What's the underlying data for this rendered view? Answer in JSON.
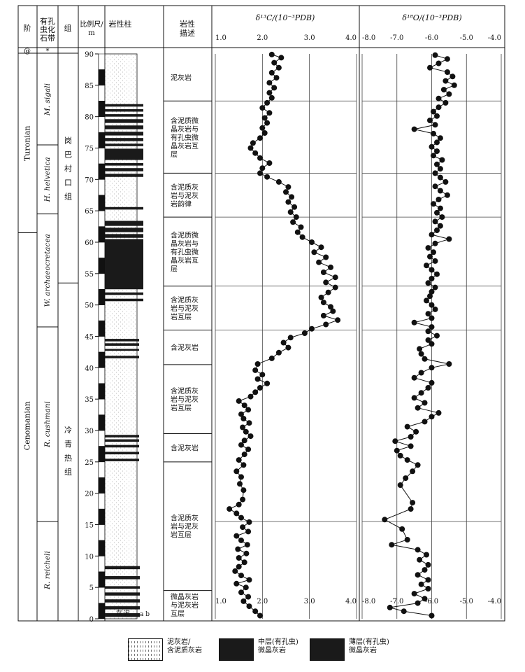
{
  "headers": {
    "stage": "阶",
    "biozone": [
      "有孔",
      "虫化",
      "石带"
    ],
    "group": "组",
    "scale": [
      "比例尺/",
      "m"
    ],
    "column": "岩性柱",
    "desc": [
      "岩性",
      "描述"
    ],
    "d13c": "δ¹³C/(10⁻³PDB)",
    "d18o": "δ¹⁸O/(10⁻³PDB)"
  },
  "top_row": {
    "stage": "@",
    "biozone": "*"
  },
  "stages": [
    {
      "name": "Turonian",
      "from_m": 61.5,
      "to_m": 90
    },
    {
      "name": "Cenomanian",
      "from_m": 0,
      "to_m": 61.5
    }
  ],
  "biozones": [
    {
      "name": "M. sigali",
      "from_m": 75.5,
      "to_m": 90
    },
    {
      "name": "H. helvetica",
      "from_m": 64.5,
      "to_m": 75.5
    },
    {
      "name": "W. archaeocretacea",
      "from_m": 46.5,
      "to_m": 64.5
    },
    {
      "name": "R. cushmani",
      "from_m": 15.5,
      "to_m": 46.5
    },
    {
      "name": "R. reicheli",
      "from_m": 0,
      "to_m": 15.5
    }
  ],
  "groups": [
    {
      "name": [
        "岗",
        "巴",
        "村",
        "口",
        "组"
      ],
      "from_m": 53.5,
      "to_m": 90
    },
    {
      "name": [
        "冷",
        "青",
        "热",
        "组"
      ],
      "from_m": 0,
      "to_m": 53.5
    }
  ],
  "scale_ticks": [
    "0",
    "5",
    "10",
    "15",
    "20",
    "25",
    "30",
    "35",
    "40",
    "45",
    "50",
    "55",
    "60",
    "65",
    "70",
    "75",
    "80",
    "85",
    "90"
  ],
  "column_footer": {
    "left": "灰泥",
    "right": "a b"
  },
  "lithology_desc": [
    {
      "lines": [
        "泥灰岩"
      ],
      "from_m": 82.5,
      "to_m": 90
    },
    {
      "lines": [
        "含泥质微",
        "晶灰岩与",
        "有孔虫微",
        "晶灰岩互",
        "层"
      ],
      "from_m": 71,
      "to_m": 82.5
    },
    {
      "lines": [
        "含泥质灰",
        "岩与泥灰",
        "岩韵律"
      ],
      "from_m": 64,
      "to_m": 71
    },
    {
      "lines": [
        "含泥质微",
        "晶灰岩与",
        "有孔虫微",
        "晶灰岩互",
        "层"
      ],
      "from_m": 53,
      "to_m": 64
    },
    {
      "lines": [
        "含泥质灰",
        "岩与泥灰",
        "岩互层"
      ],
      "from_m": 46,
      "to_m": 53
    },
    {
      "lines": [
        "含泥灰岩"
      ],
      "from_m": 40.5,
      "to_m": 46
    },
    {
      "lines": [
        "含泥质灰",
        "岩与泥灰",
        "岩互层"
      ],
      "from_m": 29.5,
      "to_m": 40.5
    },
    {
      "lines": [
        "含泥灰岩"
      ],
      "from_m": 25,
      "to_m": 29.5
    },
    {
      "lines": [
        "含泥质灰",
        "岩与泥灰",
        "岩互层"
      ],
      "from_m": 4.5,
      "to_m": 25
    },
    {
      "lines": [
        "微晶灰岩",
        "与泥灰岩",
        "互层"
      ],
      "from_m": 0,
      "to_m": 4.5
    }
  ],
  "legend": [
    {
      "kind": "pattern",
      "lines": [
        "泥灰岩/",
        "含泥质灰岩"
      ]
    },
    {
      "kind": "solid",
      "lines": [
        "中层(有孔虫)",
        "微晶灰岩"
      ]
    },
    {
      "kind": "solid",
      "lines": [
        "薄层(有孔虫)",
        "微晶灰岩"
      ]
    }
  ],
  "colors": {
    "ink": "#111111",
    "fill_dark": "#1a1a1a"
  },
  "chart_data": [
    {
      "type": "line",
      "title": "δ¹³C/(10⁻³PDB)",
      "xlabel": "δ¹³C/(10⁻³PDB)",
      "ylabel": "比例尺/m",
      "xlim": [
        1.0,
        4.0
      ],
      "xticks": [
        "1.0",
        "2.0",
        "3.0",
        "4.0"
      ],
      "ylim": [
        0,
        90
      ],
      "grid": true,
      "markers": "filled-circle",
      "series": [
        {
          "points": [
            [
              1.95,
              0.5
            ],
            [
              1.85,
              1.2
            ],
            [
              1.72,
              2.0
            ],
            [
              1.6,
              2.8
            ],
            [
              1.7,
              3.5
            ],
            [
              1.55,
              4.2
            ],
            [
              1.65,
              5.0
            ],
            [
              1.45,
              5.6
            ],
            [
              1.72,
              6.2
            ],
            [
              1.55,
              6.9
            ],
            [
              1.42,
              7.6
            ],
            [
              1.5,
              8.3
            ],
            [
              1.62,
              9.0
            ],
            [
              1.5,
              9.7
            ],
            [
              1.66,
              10.4
            ],
            [
              1.48,
              11.1
            ],
            [
              1.68,
              11.8
            ],
            [
              1.55,
              12.5
            ],
            [
              1.45,
              13.2
            ],
            [
              1.7,
              13.9
            ],
            [
              1.58,
              14.6
            ],
            [
              1.72,
              15.4
            ],
            [
              1.55,
              16.1
            ],
            [
              1.45,
              16.8
            ],
            [
              1.3,
              17.5
            ],
            [
              1.5,
              18.2
            ],
            [
              1.58,
              19.0
            ],
            [
              1.6,
              20.5
            ],
            [
              1.52,
              21.5
            ],
            [
              1.55,
              22.6
            ],
            [
              1.45,
              23.5
            ],
            [
              1.6,
              24.5
            ],
            [
              1.5,
              25.3
            ],
            [
              1.62,
              26.2
            ],
            [
              1.7,
              27.0
            ],
            [
              1.55,
              27.7
            ],
            [
              1.62,
              28.4
            ],
            [
              1.75,
              29.1
            ],
            [
              1.65,
              29.8
            ],
            [
              1.58,
              30.5
            ],
            [
              1.72,
              31.2
            ],
            [
              1.6,
              31.9
            ],
            [
              1.55,
              32.6
            ],
            [
              1.7,
              33.3
            ],
            [
              1.62,
              34.0
            ],
            [
              1.5,
              34.7
            ],
            [
              1.75,
              35.4
            ],
            [
              1.85,
              36.1
            ],
            [
              1.95,
              36.8
            ],
            [
              2.1,
              37.5
            ],
            [
              1.9,
              38.2
            ],
            [
              2.0,
              38.9
            ],
            [
              1.85,
              39.6
            ],
            [
              1.9,
              40.6
            ],
            [
              2.2,
              41.5
            ],
            [
              2.35,
              42.4
            ],
            [
              2.55,
              43.2
            ],
            [
              2.45,
              44.0
            ],
            [
              2.6,
              44.8
            ],
            [
              2.9,
              45.5
            ],
            [
              3.05,
              46.2
            ],
            [
              3.35,
              46.9
            ],
            [
              3.6,
              47.6
            ],
            [
              3.3,
              48.3
            ],
            [
              3.5,
              49.0
            ],
            [
              3.45,
              49.7
            ],
            [
              3.3,
              50.4
            ],
            [
              3.25,
              51.2
            ],
            [
              3.4,
              52.0
            ],
            [
              3.55,
              52.8
            ],
            [
              3.35,
              53.6
            ],
            [
              3.55,
              54.4
            ],
            [
              3.3,
              55.2
            ],
            [
              3.45,
              56.0
            ],
            [
              3.2,
              56.8
            ],
            [
              3.35,
              57.6
            ],
            [
              3.1,
              58.4
            ],
            [
              3.25,
              59.2
            ],
            [
              3.05,
              60.0
            ],
            [
              2.85,
              60.8
            ],
            [
              2.75,
              61.6
            ],
            [
              2.82,
              62.4
            ],
            [
              2.65,
              63.2
            ],
            [
              2.72,
              64.0
            ],
            [
              2.6,
              64.8
            ],
            [
              2.68,
              65.6
            ],
            [
              2.55,
              66.4
            ],
            [
              2.62,
              67.2
            ],
            [
              2.5,
              68.0
            ],
            [
              2.55,
              68.8
            ],
            [
              2.35,
              69.6
            ],
            [
              2.1,
              70.4
            ],
            [
              1.95,
              71.0
            ],
            [
              2.0,
              71.8
            ],
            [
              2.15,
              72.6
            ],
            [
              1.95,
              73.4
            ],
            [
              1.85,
              74.2
            ],
            [
              1.75,
              75.0
            ],
            [
              1.8,
              75.8
            ],
            [
              1.95,
              76.6
            ],
            [
              2.05,
              77.4
            ],
            [
              2.0,
              78.2
            ],
            [
              2.1,
              79.0
            ],
            [
              2.05,
              79.8
            ],
            [
              2.15,
              80.6
            ],
            [
              2.0,
              81.4
            ],
            [
              2.1,
              82.2
            ],
            [
              2.2,
              83.0
            ],
            [
              2.15,
              83.8
            ],
            [
              2.25,
              84.6
            ],
            [
              2.15,
              85.4
            ],
            [
              2.3,
              86.2
            ],
            [
              2.2,
              87.0
            ],
            [
              2.35,
              87.8
            ],
            [
              2.25,
              88.6
            ],
            [
              2.4,
              89.4
            ],
            [
              2.2,
              89.9
            ]
          ]
        }
      ]
    },
    {
      "type": "line",
      "title": "δ¹⁸O/(10⁻³PDB)",
      "xlabel": "δ¹⁸O/(10⁻³PDB)",
      "ylabel": "比例尺/m",
      "xlim": [
        -8.0,
        -4.0
      ],
      "xticks": [
        "-8.0",
        "-7.0",
        "-6.0",
        "-5.0",
        "-4.0"
      ],
      "ylim": [
        0,
        90
      ],
      "grid": true,
      "markers": "filled-circle",
      "series": [
        {
          "points": [
            [
              -6.0,
              0.5
            ],
            [
              -6.8,
              1.2
            ],
            [
              -7.2,
              1.8
            ],
            [
              -6.4,
              2.5
            ],
            [
              -6.2,
              3.2
            ],
            [
              -6.5,
              4.0
            ],
            [
              -6.1,
              4.8
            ],
            [
              -6.3,
              5.5
            ],
            [
              -6.1,
              6.2
            ],
            [
              -6.4,
              7.0
            ],
            [
              -6.2,
              7.8
            ],
            [
              -6.1,
              8.6
            ],
            [
              -6.35,
              9.4
            ],
            [
              -6.15,
              10.2
            ],
            [
              -6.4,
              11.0
            ],
            [
              -7.15,
              11.8
            ],
            [
              -6.7,
              12.6
            ],
            [
              -6.85,
              14.3
            ],
            [
              -7.35,
              15.8
            ],
            [
              -6.6,
              17.5
            ],
            [
              -6.55,
              18.5
            ],
            [
              -6.9,
              21.3
            ],
            [
              -6.75,
              22.4
            ],
            [
              -6.55,
              23.5
            ],
            [
              -6.4,
              24.5
            ],
            [
              -6.7,
              25.3
            ],
            [
              -6.9,
              26.0
            ],
            [
              -7.0,
              26.8
            ],
            [
              -6.6,
              27.5
            ],
            [
              -7.05,
              28.3
            ],
            [
              -6.6,
              29.0
            ],
            [
              -6.45,
              29.8
            ],
            [
              -6.7,
              30.6
            ],
            [
              -6.2,
              31.4
            ],
            [
              -6.0,
              32.2
            ],
            [
              -5.8,
              32.8
            ],
            [
              -6.4,
              33.6
            ],
            [
              -6.2,
              34.4
            ],
            [
              -6.5,
              35.2
            ],
            [
              -6.3,
              36.0
            ],
            [
              -6.1,
              36.8
            ],
            [
              -6.0,
              37.6
            ],
            [
              -6.5,
              38.4
            ],
            [
              -6.3,
              39.2
            ],
            [
              -6.0,
              40.0
            ],
            [
              -5.5,
              40.6
            ],
            [
              -6.2,
              41.4
            ],
            [
              -6.3,
              42.2
            ],
            [
              -6.35,
              43.0
            ],
            [
              -6.0,
              43.8
            ],
            [
              -6.1,
              44.4
            ],
            [
              -5.85,
              45.1
            ],
            [
              -6.1,
              45.8
            ],
            [
              -6.0,
              46.5
            ],
            [
              -6.5,
              47.2
            ],
            [
              -6.0,
              47.9
            ],
            [
              -6.1,
              48.6
            ],
            [
              -5.9,
              49.3
            ],
            [
              -6.0,
              50.0
            ],
            [
              -6.15,
              50.7
            ],
            [
              -6.05,
              51.4
            ],
            [
              -6.0,
              52.1
            ],
            [
              -5.9,
              52.8
            ],
            [
              -6.1,
              53.5
            ],
            [
              -6.0,
              54.2
            ],
            [
              -5.85,
              54.9
            ],
            [
              -6.0,
              55.6
            ],
            [
              -6.15,
              56.3
            ],
            [
              -5.9,
              57.0
            ],
            [
              -6.05,
              57.7
            ],
            [
              -5.95,
              58.4
            ],
            [
              -6.1,
              59.1
            ],
            [
              -5.9,
              59.8
            ],
            [
              -5.5,
              60.5
            ],
            [
              -6.0,
              61.2
            ],
            [
              -5.85,
              61.9
            ],
            [
              -5.75,
              62.6
            ],
            [
              -5.9,
              63.3
            ],
            [
              -5.7,
              64.0
            ],
            [
              -5.85,
              64.7
            ],
            [
              -5.75,
              65.4
            ],
            [
              -5.95,
              66.1
            ],
            [
              -5.8,
              66.8
            ],
            [
              -5.55,
              67.5
            ],
            [
              -5.75,
              68.2
            ],
            [
              -5.9,
              68.9
            ],
            [
              -5.6,
              69.6
            ],
            [
              -5.75,
              70.3
            ],
            [
              -5.9,
              71.0
            ],
            [
              -5.75,
              71.7
            ],
            [
              -5.85,
              72.4
            ],
            [
              -5.7,
              73.1
            ],
            [
              -5.95,
              73.8
            ],
            [
              -5.85,
              74.5
            ],
            [
              -6.0,
              75.2
            ],
            [
              -5.85,
              75.9
            ],
            [
              -5.75,
              76.6
            ],
            [
              -5.95,
              77.3
            ],
            [
              -6.5,
              78.0
            ],
            [
              -5.9,
              78.7
            ],
            [
              -6.05,
              79.4
            ],
            [
              -5.85,
              80.1
            ],
            [
              -5.95,
              80.8
            ],
            [
              -5.8,
              81.5
            ],
            [
              -5.6,
              82.2
            ],
            [
              -5.8,
              82.9
            ],
            [
              -5.5,
              83.6
            ],
            [
              -5.65,
              84.3
            ],
            [
              -5.35,
              85.0
            ],
            [
              -5.6,
              85.7
            ],
            [
              -5.4,
              86.4
            ],
            [
              -5.55,
              87.1
            ],
            [
              -6.05,
              87.8
            ],
            [
              -5.8,
              88.5
            ],
            [
              -5.55,
              89.2
            ],
            [
              -5.9,
              89.8
            ]
          ]
        }
      ]
    }
  ]
}
